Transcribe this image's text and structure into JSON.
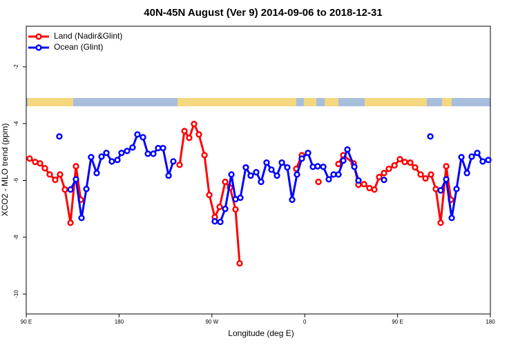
{
  "chart_data": {
    "type": "line",
    "title": "40N-45N August (Ver 9)   2014-09-06 to 2018-12-31",
    "xlabel": "Longitude (deg E)",
    "ylabel": "XCO2 - MLO trend (ppm)",
    "xlim": [
      90,
      540
    ],
    "ylim": [
      -10.7,
      -0.57
    ],
    "xticks": [
      {
        "value": 90,
        "label": "90 E"
      },
      {
        "value": 180,
        "label": "180"
      },
      {
        "value": 270,
        "label": "90 W"
      },
      {
        "value": 360,
        "label": "0"
      },
      {
        "value": 450,
        "label": "90 E"
      },
      {
        "value": 540,
        "label": "180"
      }
    ],
    "yticks": [
      -10,
      -8,
      -6,
      -4,
      -2
    ],
    "legend": "top-left",
    "series": [
      {
        "name": "Land (Nadir&Glint)",
        "color": "#ff0000",
        "x": [
          93.3,
          98.7,
          103.4,
          108.1,
          112.8,
          118.1,
          122.8,
          127.5,
          132.9,
          138.2,
          142.9,
          null,
          238.7,
          243.4,
          248.0,
          252.7,
          257.4,
          262.8,
          267.5,
          272.8,
          277.5,
          282.9,
          287.6,
          292.9,
          296.9,
          null,
          351.8,
          357.2,
          null,
          373.3,
          null,
          392.7,
          397.4,
          407.4,
          412.1,
          417.5,
          422.8,
          427.5,
          432.2,
          436.9,
          441.6,
          447.0,
          452.3,
          457.0,
          462.3,
          467.0,
          472.4,
          477.1,
          482.4,
          487.1,
          491.8,
          497.2,
          501.8
        ],
        "values": [
          -5.23,
          -5.35,
          -5.4,
          -5.57,
          -5.79,
          -5.98,
          -5.79,
          -6.32,
          -7.49,
          -5.5,
          -6.68,
          null,
          -5.45,
          -4.26,
          -4.5,
          -4.01,
          -4.38,
          -5.11,
          -6.51,
          -7.29,
          -6.93,
          -6.05,
          -6.25,
          -7.02,
          -8.92,
          null,
          -5.59,
          -5.11,
          null,
          -6.05,
          null,
          -5.42,
          -5.11,
          -5.4,
          -6.15,
          -6.13,
          -6.27,
          -6.32,
          -5.88,
          -5.74,
          -5.59,
          -5.47,
          -5.25,
          -5.35,
          -5.37,
          -5.54,
          -5.79,
          -5.93,
          -5.79,
          -6.3,
          -7.49,
          -5.5,
          -6.68
        ]
      },
      {
        "name": "Ocean (Glint)",
        "color": "#0000ff",
        "x": [
          122.1,
          null,
          132.9,
          138.2,
          143.6,
          148.3,
          152.9,
          158.3,
          163.0,
          167.7,
          173.0,
          178.4,
          182.4,
          187.8,
          193.1,
          197.8,
          203.2,
          207.9,
          213.2,
          217.9,
          222.6,
          228.0,
          232.6,
          null,
          272.8,
          278.2,
          282.9,
          288.9,
          292.9,
          297.6,
          302.9,
          307.6,
          313.0,
          317.7,
          323.0,
          327.7,
          333.1,
          337.8,
          343.1,
          347.8,
          352.5,
          357.2,
          363.2,
          367.9,
          372.6,
          378.0,
          383.3,
          388.0,
          392.7,
          397.4,
          401.4,
          408.1,
          412.1,
          null,
          436.9,
          null,
          481.8,
          null,
          491.8,
          497.2,
          502.5,
          507.2,
          511.9,
          517.3,
          521.9,
          527.3,
          532.6,
          538.0
        ],
        "values": [
          -4.45,
          null,
          -6.32,
          -5.96,
          -7.32,
          -6.3,
          -5.18,
          -5.74,
          -5.16,
          -5.03,
          -5.33,
          -5.28,
          -5.03,
          -4.96,
          -4.84,
          -4.38,
          -4.48,
          -5.06,
          -5.06,
          -4.86,
          -4.86,
          -5.83,
          -5.33,
          null,
          -7.44,
          -7.46,
          -7.0,
          -5.79,
          -6.66,
          -6.61,
          -5.54,
          -5.83,
          -5.71,
          -6.05,
          -5.37,
          -5.62,
          -5.83,
          -5.37,
          -5.54,
          -6.68,
          -5.79,
          -5.23,
          -5.03,
          -5.52,
          -5.5,
          -5.52,
          -5.96,
          -5.79,
          -5.79,
          -5.3,
          -4.91,
          -5.52,
          -6.0,
          null,
          -5.98,
          null,
          -4.45,
          null,
          -6.35,
          -5.96,
          -7.32,
          -6.3,
          -5.18,
          -5.74,
          -5.16,
          -5.03,
          -5.33,
          -5.28
        ]
      }
    ]
  }
}
